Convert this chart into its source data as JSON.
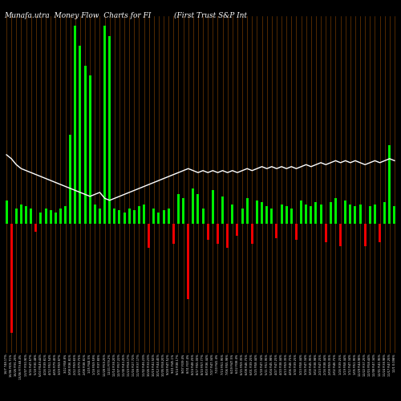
{
  "title": "Munafa.utra  Money Flow  Charts for FI          (First Trust S&P Int",
  "bg_color": "#000000",
  "bar_color_pos": "#00ee00",
  "bar_color_neg": "#ee0000",
  "line_color": "#ffffff",
  "orange_line_color": "#cc6600",
  "title_color": "#ffffff",
  "title_fontsize": 6.5,
  "bar_values": [
    0.12,
    -0.55,
    0.08,
    0.1,
    0.09,
    0.08,
    -0.04,
    0.06,
    0.08,
    0.07,
    0.06,
    0.08,
    0.09,
    0.45,
    1.0,
    0.9,
    0.8,
    0.75,
    0.1,
    0.08,
    1.0,
    0.95,
    0.08,
    0.07,
    0.06,
    0.08,
    0.07,
    0.09,
    0.1,
    -0.12,
    0.08,
    0.06,
    0.07,
    0.08,
    -0.1,
    0.15,
    0.13,
    -0.38,
    0.18,
    0.15,
    0.08,
    -0.08,
    0.17,
    -0.1,
    0.14,
    -0.12,
    0.1,
    -0.06,
    0.08,
    0.13,
    -0.1,
    0.12,
    0.11,
    0.09,
    0.08,
    -0.07,
    0.1,
    0.09,
    0.08,
    -0.08,
    0.12,
    0.1,
    0.09,
    0.11,
    0.1,
    -0.09,
    0.11,
    0.13,
    -0.11,
    0.12,
    0.1,
    0.09,
    0.1,
    -0.11,
    0.09,
    0.1,
    -0.09,
    0.11,
    0.4,
    0.09
  ],
  "line_values": [
    0.7,
    0.68,
    0.65,
    0.63,
    0.62,
    0.61,
    0.6,
    0.59,
    0.58,
    0.57,
    0.56,
    0.55,
    0.54,
    0.53,
    0.52,
    0.51,
    0.5,
    0.49,
    0.5,
    0.51,
    0.48,
    0.47,
    0.48,
    0.49,
    0.5,
    0.51,
    0.52,
    0.53,
    0.54,
    0.55,
    0.56,
    0.57,
    0.58,
    0.59,
    0.6,
    0.61,
    0.62,
    0.63,
    0.62,
    0.61,
    0.62,
    0.61,
    0.62,
    0.61,
    0.62,
    0.61,
    0.62,
    0.61,
    0.62,
    0.63,
    0.62,
    0.63,
    0.64,
    0.63,
    0.64,
    0.63,
    0.64,
    0.63,
    0.64,
    0.63,
    0.64,
    0.65,
    0.64,
    0.65,
    0.66,
    0.65,
    0.66,
    0.67,
    0.66,
    0.67,
    0.66,
    0.67,
    0.66,
    0.65,
    0.66,
    0.67,
    0.66,
    0.67,
    0.68,
    0.67
  ],
  "xlabels": [
    "16/7 748.17%",
    "16/06 FID5.71%",
    "16/26 FI91.29%",
    "13/06 FI79.68.4%",
    "13/07 FI90.90%",
    "6/16 FI47.67%",
    "5/18 FI30.48%",
    "5/03 FI549.44%",
    "4/26 FI39.81%",
    "4/12 FI51.54%",
    "4/05 FI79.45%",
    "3/29 FI59.87%",
    "3/22 FI58.8%",
    "3/08 FI36.81%",
    "2/22 FI59.65%",
    "2/15 FI79.75%",
    "2/08 FI38.81%",
    "1/25 FI44.5%",
    "1/18 FI59.59%",
    "1/11 FI37.80%",
    "12/28 FI59.25%",
    "12/21 FI79.2%",
    "12/14 FI38.20%",
    "12/07 FI57.22%",
    "11/30 FI43.25%",
    "11/23 FI58.17%",
    "11/16 FI27.72%",
    "11/09 FI37.17%",
    "11/02 FI46.23%",
    "10/26 FI30.23%",
    "10/19 FI42.50%",
    "10/12 FI44.40%",
    "10/05 FI58.20%",
    "9/28 FI47.52%",
    "9/21 FI45.1%",
    "9/14 FI38.17%",
    "9/07 FI39.4%",
    "8/31 FI37.4%",
    "8/24 FI48.25%",
    "8/17 FI55.00%",
    "8/10 FI57.77%",
    "8/03 FI36.44%",
    "7/27 FI47.34%",
    "7/20 FI41.4%",
    "7/13 FI51.95%",
    "7/06 FI55.98%",
    "6/29 FI47.5%",
    "6/22 FI38.4%",
    "6/15 FI59.35%",
    "6/08 FI46.75%",
    "6/01 FI39.25%",
    "5/25 FI58.44%",
    "5/18 FI47.34%",
    "5/11 FI51.95%",
    "5/04 FI45.98%",
    "4/27 FI47.25%",
    "4/20 FI38.44%",
    "4/13 FI59.35%",
    "4/06 FI46.75%",
    "3/30 FI39.25%",
    "3/23 FI58.44%",
    "3/16 FI47.34%",
    "3/09 FI45.95%",
    "3/02 FI38.98%",
    "2/23 FI47.25%",
    "2/16 FI38.44%",
    "2/09 FI59.35%",
    "2/02 FI46.75%",
    "1/26 FI39.25%",
    "1/19 FI58.44%",
    "1/12 FI47.34%",
    "1/05 FI51.95%",
    "12/29 FI44.98%",
    "12/22 FI37.25%",
    "12/15 FI58.44%",
    "12/08 FI47.34%",
    "12/01 FI41.95%",
    "11/24 FI38.98%",
    "11/17 FI47.25%",
    "12/1 0.098%"
  ]
}
